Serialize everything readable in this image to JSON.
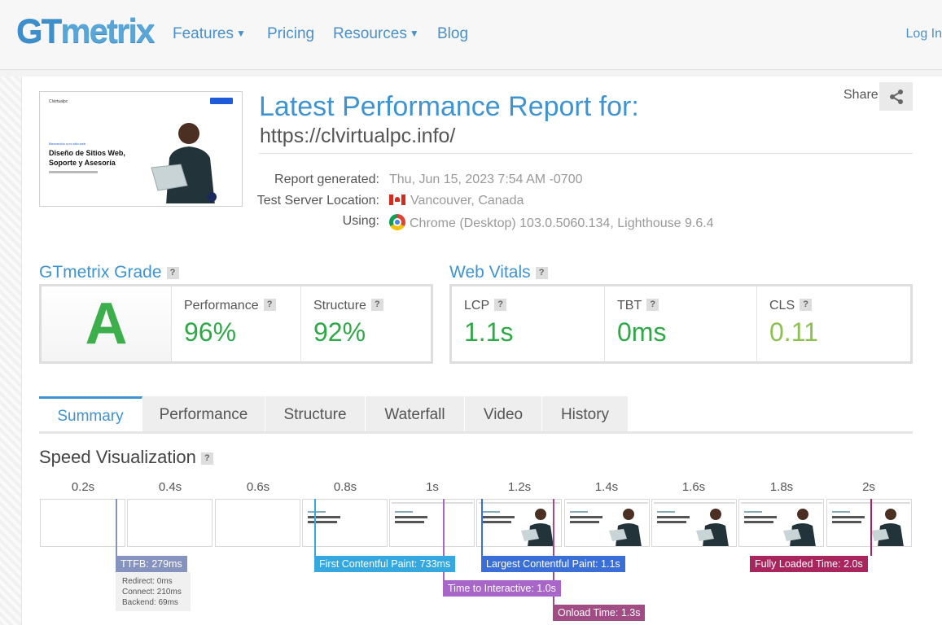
{
  "nav": {
    "logo": {
      "gt": "GT",
      "metrix": "metrix"
    },
    "items": [
      {
        "label": "Features",
        "has_dropdown": true
      },
      {
        "label": "Pricing",
        "has_dropdown": false
      },
      {
        "label": "Resources",
        "has_dropdown": true
      },
      {
        "label": "Blog",
        "has_dropdown": false
      }
    ],
    "login": "Log In"
  },
  "report": {
    "title": "Latest Performance Report for:",
    "url": "https://clvirtualpc.info/",
    "share_label": "Share",
    "meta": [
      {
        "key": "Report generated:",
        "value": "Thu, Jun 15, 2023 7:54 AM -0700",
        "icon": ""
      },
      {
        "key": "Test Server Location:",
        "value": "Vancouver, Canada",
        "icon": "canada-flag-icon"
      },
      {
        "key": "Using:",
        "value": "Chrome (Desktop) 103.0.5060.134, Lighthouse 9.6.4",
        "icon": "chrome-icon"
      }
    ]
  },
  "thumbnail": {
    "nav_text": "Clvirtualpc",
    "small_label": "Bienvenido a mi sitio web",
    "headline_1": "Diseño de Sitios Web,",
    "headline_2": "Soporte y Asesoría"
  },
  "grade": {
    "title": "GTmetrix Grade",
    "letter": "A",
    "performance_label": "Performance",
    "performance_value": "96%",
    "structure_label": "Structure",
    "structure_value": "92%"
  },
  "vitals": {
    "title": "Web Vitals",
    "items": [
      {
        "label": "LCP",
        "value": "1.1s",
        "color": "#2fa847"
      },
      {
        "label": "TBT",
        "value": "0ms",
        "color": "#2fa847"
      },
      {
        "label": "CLS",
        "value": "0.11",
        "color": "#8cc152"
      }
    ]
  },
  "tabs": [
    {
      "label": "Summary",
      "active": true
    },
    {
      "label": "Performance",
      "active": false
    },
    {
      "label": "Structure",
      "active": false
    },
    {
      "label": "Waterfall",
      "active": false
    },
    {
      "label": "Video",
      "active": false
    },
    {
      "label": "History",
      "active": false
    }
  ],
  "speed": {
    "title": "Speed Visualization",
    "ticks": [
      "0.2s",
      "0.4s",
      "0.6s",
      "0.8s",
      "1s",
      "1.2s",
      "1.4s",
      "1.6s",
      "1.8s",
      "2s"
    ],
    "markers": {
      "ttfb": "TTFB: 279ms",
      "fcp": "First Contentful Paint: 733ms",
      "lcp": "Largest Contentful Paint: 1.1s",
      "tti": "Time to Interactive: 1.0s",
      "onload": "Onload Time: 1.3s",
      "fully": "Fully Loaded Time: 2.0s"
    },
    "ttfb_detail": {
      "redirect": "Redirect: 0ms",
      "connect": "Connect: 210ms",
      "backend": "Backend: 69ms"
    }
  },
  "colors": {
    "brand": "#3f93d1",
    "grade_green": "#3cae4b",
    "ttfb": "#8793bf",
    "fcp": "#35a8e0",
    "lcp": "#3b6fd8",
    "tti": "#a866c9",
    "onload": "#a24c86",
    "fully": "#a8255d"
  }
}
